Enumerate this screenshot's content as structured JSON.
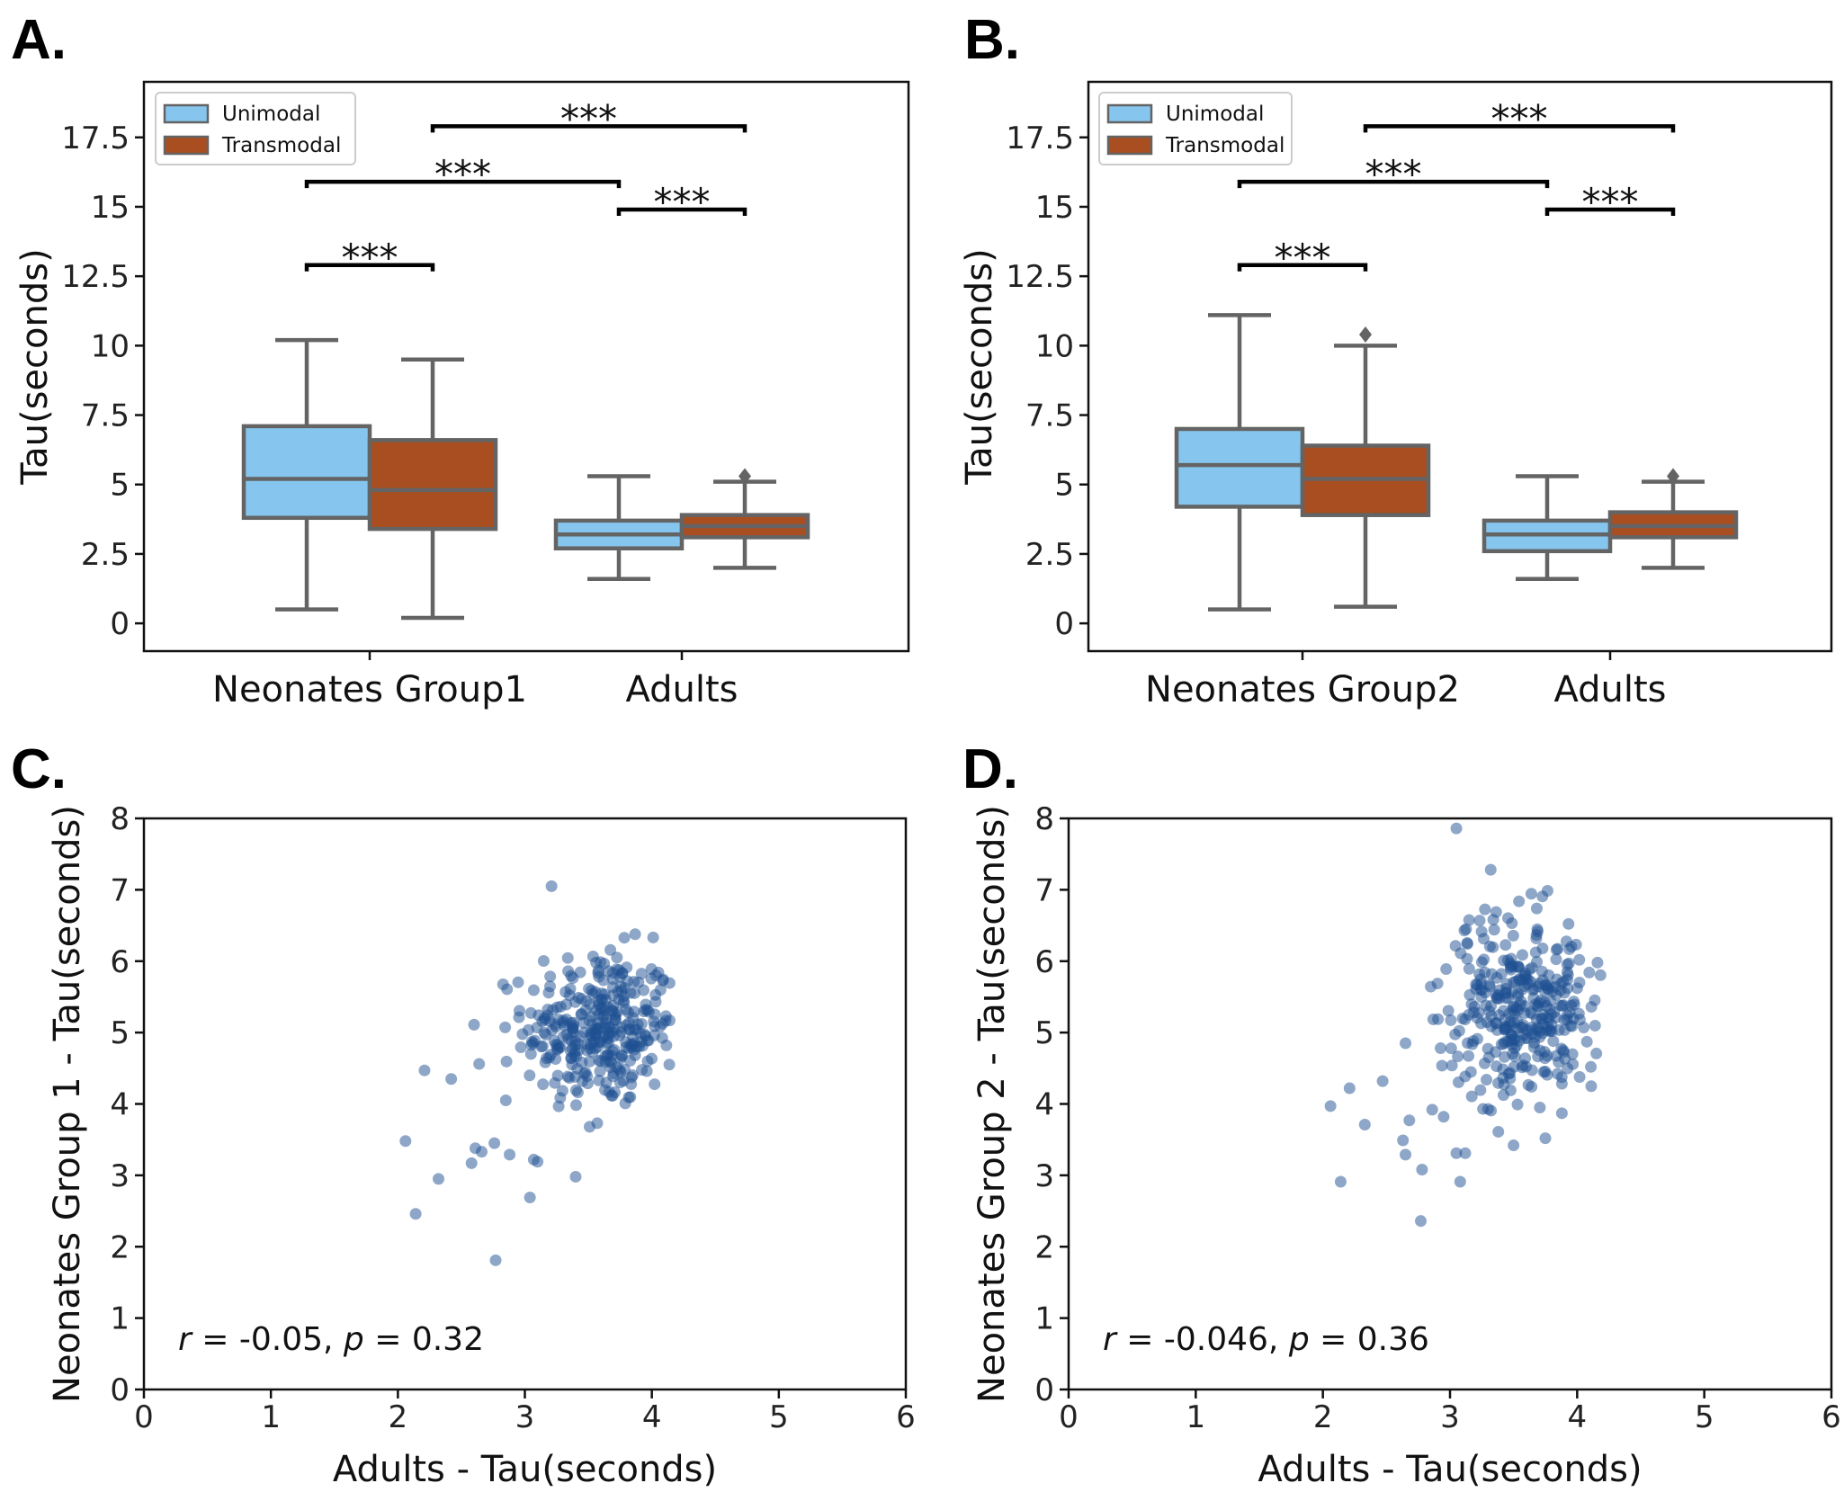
{
  "colors": {
    "unimodal": "#86c5ee",
    "transmodal": "#a84e20",
    "box_edge": "#646464",
    "scatter": "#1e4f91",
    "axis": "#111111"
  },
  "chart_data": [
    {
      "panel": "A.",
      "type": "box",
      "ylabel": "Tau(seconds)",
      "ylim": [
        -1,
        19.5
      ],
      "yticks": [
        0,
        2.5,
        5,
        7.5,
        10,
        12.5,
        15,
        17.5
      ],
      "ytick_labels": [
        "0",
        "2.5",
        "5",
        "7.5",
        "10",
        "12.5",
        "15",
        "17.5"
      ],
      "categories": [
        "Neonates Group1",
        "Adults"
      ],
      "legend": {
        "position": "top-left",
        "entries": [
          "Unimodal",
          "Transmodal"
        ]
      },
      "series": [
        {
          "name": "Unimodal",
          "boxes": [
            {
              "whislo": 0.5,
              "q1": 3.8,
              "med": 5.2,
              "q3": 7.1,
              "whishi": 10.2,
              "fliers": []
            },
            {
              "whislo": 1.6,
              "q1": 2.7,
              "med": 3.2,
              "q3": 3.7,
              "whishi": 5.3,
              "fliers": []
            }
          ]
        },
        {
          "name": "Transmodal",
          "boxes": [
            {
              "whislo": 0.2,
              "q1": 3.4,
              "med": 4.8,
              "q3": 6.6,
              "whishi": 9.5,
              "fliers": []
            },
            {
              "whislo": 2.0,
              "q1": 3.1,
              "med": 3.5,
              "q3": 3.9,
              "whishi": 5.1,
              "fliers": [
                5.3
              ]
            }
          ]
        }
      ],
      "annotations": [
        {
          "text": "***",
          "y": 12.9,
          "from": "Neonates Group1|Unimodal",
          "to": "Neonates Group1|Transmodal"
        },
        {
          "text": "***",
          "y": 15.9,
          "from": "Neonates Group1|Unimodal",
          "to": "Adults|Unimodal"
        },
        {
          "text": "***",
          "y": 14.9,
          "from": "Adults|Unimodal",
          "to": "Adults|Transmodal"
        },
        {
          "text": "***",
          "y": 17.9,
          "from": "Neonates Group1|Transmodal",
          "to": "Adults|Transmodal"
        }
      ]
    },
    {
      "panel": "B.",
      "type": "box",
      "ylabel": "Tau(seconds)",
      "ylim": [
        -1,
        19.5
      ],
      "yticks": [
        0,
        2.5,
        5,
        7.5,
        10,
        12.5,
        15,
        17.5
      ],
      "ytick_labels": [
        "0",
        "2.5",
        "5",
        "7.5",
        "10",
        "12.5",
        "15",
        "17.5"
      ],
      "categories": [
        "Neonates Group2",
        "Adults"
      ],
      "legend": {
        "position": "top-left",
        "entries": [
          "Unimodal",
          "Transmodal"
        ]
      },
      "series": [
        {
          "name": "Unimodal",
          "boxes": [
            {
              "whislo": 0.5,
              "q1": 4.2,
              "med": 5.7,
              "q3": 7.0,
              "whishi": 11.1,
              "fliers": []
            },
            {
              "whislo": 1.6,
              "q1": 2.6,
              "med": 3.2,
              "q3": 3.7,
              "whishi": 5.3,
              "fliers": []
            }
          ]
        },
        {
          "name": "Transmodal",
          "boxes": [
            {
              "whislo": 0.6,
              "q1": 3.9,
              "med": 5.2,
              "q3": 6.4,
              "whishi": 10.0,
              "fliers": [
                10.4
              ]
            },
            {
              "whislo": 2.0,
              "q1": 3.1,
              "med": 3.5,
              "q3": 4.0,
              "whishi": 5.1,
              "fliers": [
                5.3
              ]
            }
          ]
        }
      ],
      "annotations": [
        {
          "text": "***",
          "y": 12.9,
          "from": "Neonates Group2|Unimodal",
          "to": "Neonates Group2|Transmodal"
        },
        {
          "text": "***",
          "y": 15.9,
          "from": "Neonates Group2|Unimodal",
          "to": "Adults|Unimodal"
        },
        {
          "text": "***",
          "y": 14.9,
          "from": "Adults|Unimodal",
          "to": "Adults|Transmodal"
        },
        {
          "text": "***",
          "y": 17.9,
          "from": "Neonates Group2|Transmodal",
          "to": "Adults|Transmodal"
        }
      ]
    },
    {
      "panel": "C.",
      "type": "scatter",
      "xlabel": "Adults - Tau(seconds)",
      "ylabel": "Neonates Group 1 - Tau(seconds)",
      "xlim": [
        0,
        6
      ],
      "ylim": [
        0,
        8
      ],
      "xticks": [
        0,
        1,
        2,
        3,
        4,
        5,
        6
      ],
      "yticks": [
        0,
        1,
        2,
        3,
        4,
        5,
        6,
        7,
        8
      ],
      "stats": {
        "r_symbol": "r",
        "r_value": " = -0.05, ",
        "p_symbol": "p",
        "p_value": " = 0.32"
      },
      "points_listed": [
        [
          2.06,
          3.48
        ],
        [
          2.14,
          2.46
        ],
        [
          2.21,
          4.47
        ],
        [
          2.32,
          2.95
        ],
        [
          2.42,
          4.35
        ],
        [
          2.58,
          3.17
        ],
        [
          2.61,
          3.38
        ],
        [
          2.66,
          3.33
        ],
        [
          2.76,
          3.45
        ],
        [
          2.77,
          1.81
        ],
        [
          2.85,
          4.05
        ],
        [
          2.88,
          3.29
        ],
        [
          3.04,
          2.69
        ],
        [
          3.07,
          3.22
        ],
        [
          3.1,
          3.19
        ],
        [
          3.4,
          2.98
        ],
        [
          3.51,
          3.68
        ],
        [
          3.57,
          3.73
        ],
        [
          3.21,
          7.05
        ],
        [
          2.64,
          4.56
        ],
        [
          2.6,
          5.11
        ]
      ],
      "cluster": {
        "n": 330,
        "center": [
          3.6,
          5.05
        ],
        "sd": [
          0.3,
          0.55
        ],
        "x_range": [
          2.5,
          4.2
        ],
        "y_range": [
          3.8,
          6.9
        ]
      }
    },
    {
      "panel": "D.",
      "type": "scatter",
      "xlabel": "Adults - Tau(seconds)",
      "ylabel": "Neonates  Group 2 - Tau(seconds)",
      "xlim": [
        0,
        6
      ],
      "ylim": [
        0,
        8
      ],
      "xticks": [
        0,
        1,
        2,
        3,
        4,
        5,
        6
      ],
      "yticks": [
        0,
        1,
        2,
        3,
        4,
        5,
        6,
        7,
        8
      ],
      "stats": {
        "r_symbol": "r",
        "r_value": " = -0.046, ",
        "p_symbol": "p",
        "p_value": " = 0.36"
      },
      "points_listed": [
        [
          2.06,
          3.97
        ],
        [
          2.14,
          2.91
        ],
        [
          2.21,
          4.22
        ],
        [
          2.33,
          3.71
        ],
        [
          2.47,
          4.32
        ],
        [
          2.63,
          3.49
        ],
        [
          2.65,
          3.29
        ],
        [
          2.68,
          3.77
        ],
        [
          2.78,
          3.08
        ],
        [
          2.77,
          2.36
        ],
        [
          2.86,
          3.92
        ],
        [
          2.95,
          3.82
        ],
        [
          3.05,
          3.31
        ],
        [
          3.08,
          2.91
        ],
        [
          3.12,
          3.31
        ],
        [
          3.38,
          3.61
        ],
        [
          3.5,
          3.42
        ],
        [
          3.75,
          3.52
        ],
        [
          3.05,
          7.86
        ],
        [
          3.32,
          7.28
        ],
        [
          2.65,
          4.85
        ],
        [
          3.88,
          3.87
        ],
        [
          4.16,
          5.98
        ]
      ],
      "cluster": {
        "n": 340,
        "center": [
          3.55,
          5.35
        ],
        "sd": [
          0.3,
          0.65
        ],
        "x_range": [
          2.6,
          4.2
        ],
        "y_range": [
          3.9,
          7.3
        ]
      }
    }
  ]
}
